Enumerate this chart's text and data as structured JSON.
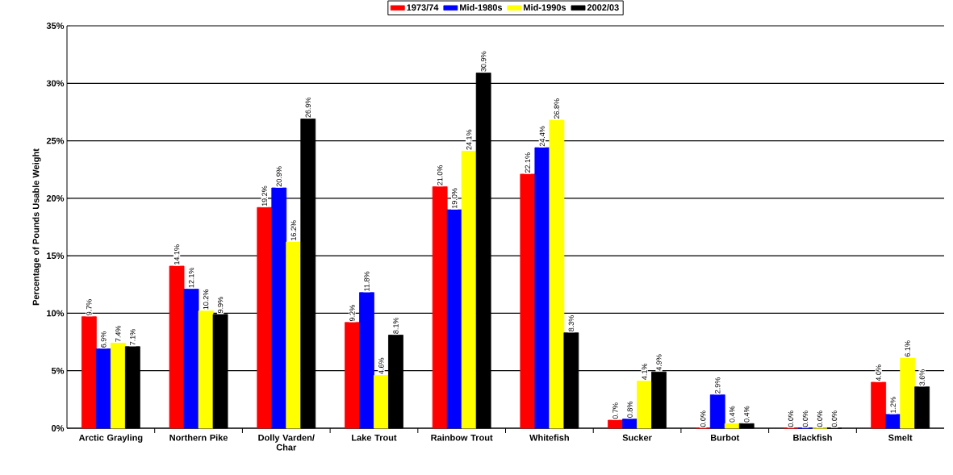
{
  "chart_data": {
    "type": "bar",
    "ylabel": "Percentage of Pounds Usable Weight",
    "categories": [
      "Arctic Grayling",
      "Northern Pike",
      "Dolly Varden/ Char",
      "Lake Trout",
      "Rainbow Trout",
      "Whitefish",
      "Sucker",
      "Burbot",
      "Blackfish",
      "Smelt"
    ],
    "series": [
      {
        "name": "1973/74",
        "color": "#ff0000",
        "values": [
          9.7,
          14.1,
          19.2,
          9.2,
          21.0,
          22.1,
          0.7,
          0.0,
          0.0,
          4.0
        ],
        "value_labels": [
          "9.7%",
          "14.1%",
          "19.2%",
          "9.2%",
          "21.0%",
          "22.1%",
          "0.7%",
          "0.0%",
          "0.0%",
          "4.0%"
        ]
      },
      {
        "name": "Mid-1980s",
        "color": "#0000ff",
        "values": [
          6.9,
          12.1,
          20.9,
          11.8,
          19.0,
          24.4,
          0.8,
          2.9,
          0.0,
          1.2
        ],
        "value_labels": [
          "6.9%",
          "12.1%",
          "20.9%",
          "11.8%",
          "19.0%",
          "24.4%",
          "0.8%",
          "2.9%",
          "0.0%",
          "1.2%"
        ]
      },
      {
        "name": "Mid-1990s",
        "color": "#ffff00",
        "values": [
          7.4,
          10.2,
          16.2,
          4.6,
          24.1,
          26.8,
          4.1,
          0.4,
          0.0,
          6.1
        ],
        "value_labels": [
          "7.4%",
          "10.2%",
          "16.2%",
          "4.6%",
          "24.1%",
          "26.8%",
          "4.1%",
          "0.4%",
          "0.0%",
          "6.1%"
        ]
      },
      {
        "name": "2002/03",
        "color": "#000000",
        "values": [
          7.1,
          9.9,
          26.9,
          8.1,
          30.9,
          8.3,
          4.9,
          0.4,
          0.0,
          3.6
        ],
        "value_labels": [
          "7.1%",
          "9.9%",
          "26.9%",
          "8.1%",
          "30.9%",
          "8.3%",
          "4.9%",
          "0.4%",
          "0.0%",
          "3.6%"
        ]
      }
    ],
    "ylim": [
      0,
      35
    ],
    "yticks": [
      {
        "value": 0,
        "label": "0%"
      },
      {
        "value": 5,
        "label": "5%"
      },
      {
        "value": 10,
        "label": "10%"
      },
      {
        "value": 15,
        "label": "15%"
      },
      {
        "value": 20,
        "label": "20%"
      },
      {
        "value": 25,
        "label": "25%"
      },
      {
        "value": 30,
        "label": "30%"
      },
      {
        "value": 35,
        "label": "35%"
      }
    ],
    "grid": "y",
    "legend": "top"
  }
}
